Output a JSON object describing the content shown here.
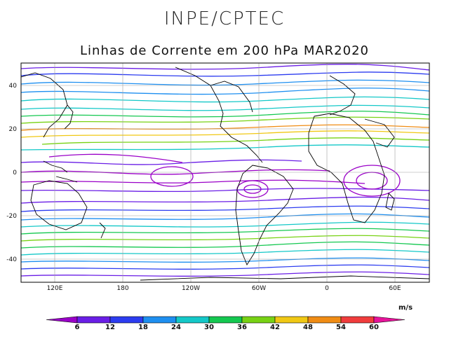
{
  "header": {
    "agency": "INPE/CPTEC",
    "subtitle": "Linhas de Corrente em 200 hPa MAR2020"
  },
  "map": {
    "lat_ticks": [
      "40",
      "20",
      "0",
      "-20",
      "-40"
    ],
    "lon_ticks": [
      "120E",
      "180",
      "120W",
      "60W",
      "0",
      "60E"
    ]
  },
  "colorbar": {
    "unit": "m/s",
    "ticks": [
      "6",
      "12",
      "18",
      "24",
      "30",
      "36",
      "42",
      "48",
      "54",
      "60"
    ],
    "colors": [
      "#9a00c8",
      "#6a1ee6",
      "#2c3cf0",
      "#1e8ff0",
      "#14c8c8",
      "#14c850",
      "#78d214",
      "#f0c814",
      "#f08c14",
      "#f03c3c",
      "#e6149a"
    ]
  }
}
